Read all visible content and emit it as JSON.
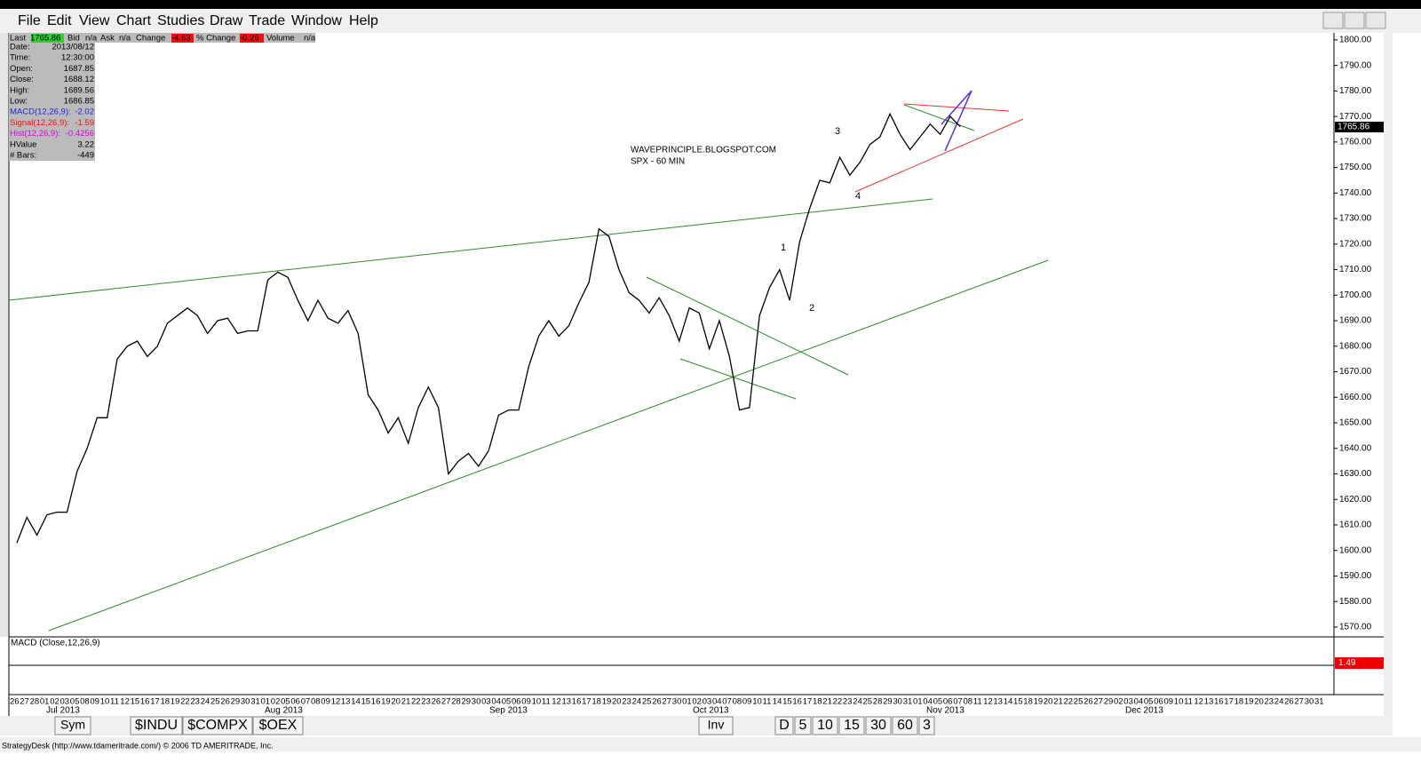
{
  "menu": [
    "File",
    "Edit",
    "View",
    "Chart",
    "Studies",
    "Draw",
    "Trade",
    "Window",
    "Help"
  ],
  "quote_bar": [
    {
      "label": "Last",
      "value": 1765.86
    },
    {
      "label": "Bid",
      "value": "n/a"
    },
    {
      "label": "Ask",
      "value": "n/a"
    },
    {
      "label": "Change",
      "value": -4.63
    },
    {
      "label": "% Change",
      "value": -0.26
    },
    {
      "label": "Volume",
      "value": "n/a"
    }
  ],
  "info_panel": [
    {
      "label": "Date:",
      "value": "2013/08/12"
    },
    {
      "label": "Time:",
      "value": "12:30:00"
    },
    {
      "label": "Open:",
      "value": 1687.85
    },
    {
      "label": "Close:",
      "value": 1688.12
    },
    {
      "label": "High:",
      "value": 1689.56
    },
    {
      "label": "Low:",
      "value": 1686.85
    },
    {
      "label": "MACD(12,26,9):",
      "value": -2.02
    },
    {
      "label": "Signal(12,26,9):",
      "value": -1.59
    },
    {
      "label": "Hist(12,26,9):",
      "value": -0.4256
    },
    {
      "label": "HValue",
      "value": 3.22
    },
    {
      "label": "# Bars:",
      "value": -449
    }
  ],
  "chart_data": {
    "type": "line",
    "annotations": [
      "WAVEPRINCIPLE.BLOGSPOT.COM",
      "SPX - 60 MIN",
      "3",
      "1",
      "2",
      "4"
    ],
    "categories": [
      "26",
      "27",
      "28",
      "01",
      "02",
      "03",
      "05",
      "08",
      "09",
      "10",
      "11",
      "12",
      "15",
      "16",
      "17",
      "18",
      "19",
      "22",
      "23",
      "24",
      "25",
      "26",
      "29",
      "30",
      "31",
      "01",
      "02",
      "05",
      "06",
      "07",
      "08",
      "09",
      "12",
      "13",
      "14",
      "15",
      "16",
      "19",
      "20",
      "21",
      "22",
      "23",
      "26",
      "27",
      "28",
      "29",
      "30",
      "03",
      "04",
      "05",
      "06",
      "09",
      "10",
      "11",
      "12",
      "13",
      "16",
      "17",
      "18",
      "19",
      "20",
      "23",
      "24",
      "25",
      "26",
      "27",
      "30",
      "01",
      "02",
      "03",
      "04",
      "07",
      "08",
      "09",
      "10",
      "11",
      "14",
      "15",
      "16",
      "17",
      "18",
      "21",
      "22",
      "23",
      "24",
      "25",
      "28",
      "29",
      "30",
      "31",
      "01",
      "04",
      "05",
      "06",
      "07",
      "08",
      "11",
      "12",
      "13",
      "14",
      "15",
      "18",
      "19",
      "20",
      "21",
      "22",
      "25",
      "26",
      "27",
      "29",
      "02",
      "03",
      "04",
      "05",
      "06",
      "09",
      "10",
      "11",
      "12",
      "13",
      "16",
      "17",
      "18",
      "19",
      "20",
      "23",
      "24",
      "26",
      "27",
      "30",
      "31"
    ],
    "months": [
      "Jul 2013",
      "Aug 2013",
      "Sep 2013",
      "Oct 2013",
      "Nov 2013",
      "Dec 2013"
    ],
    "values": [
      1603,
      1613,
      1606,
      1614,
      1615,
      1615,
      1631,
      1640,
      1652,
      1652,
      1675,
      1680,
      1682,
      1676,
      1680,
      1689,
      1692,
      1695,
      1692,
      1685,
      1690,
      1691,
      1685,
      1686,
      1686,
      1706,
      1709,
      1707,
      1698,
      1690,
      1698,
      1691,
      1689,
      1694,
      1685,
      1661,
      1655,
      1646,
      1652,
      1642,
      1656,
      1664,
      1656,
      1630,
      1635,
      1638,
      1633,
      1639,
      1653,
      1655,
      1655,
      1672,
      1684,
      1690,
      1684,
      1688,
      1697,
      1705,
      1726,
      1723,
      1710,
      1701,
      1698,
      1693,
      1699,
      1692,
      1682,
      1695,
      1693,
      1679,
      1690,
      1676,
      1655,
      1656,
      1692,
      1703,
      1710,
      1698,
      1721,
      1734,
      1745,
      1744,
      1754,
      1747,
      1752,
      1759,
      1762,
      1771,
      1763,
      1757,
      1762,
      1767,
      1763,
      1770,
      1766,
      null,
      null,
      null,
      null,
      null,
      null,
      null,
      null,
      null,
      null,
      null,
      null,
      null,
      null,
      null,
      null,
      null,
      null,
      null,
      null,
      null,
      null,
      null,
      null,
      null,
      null,
      null,
      null,
      null,
      null,
      null,
      null,
      null,
      null,
      null,
      null
    ],
    "color": "#000000",
    "ylim": [
      1566.5,
      1802.4
    ],
    "yticks": [
      {
        "value": 1570,
        "label": "1570.00"
      },
      {
        "value": 1580,
        "label": "1580.00"
      },
      {
        "value": 1590,
        "label": "1590.00"
      },
      {
        "value": 1600,
        "label": "1600.00"
      },
      {
        "value": 1610,
        "label": "1610.00"
      },
      {
        "value": 1620,
        "label": "1620.00"
      },
      {
        "value": 1630,
        "label": "1630.00"
      },
      {
        "value": 1640,
        "label": "1640.00"
      },
      {
        "value": 1650,
        "label": "1650.00"
      },
      {
        "value": 1660,
        "label": "1660.00"
      },
      {
        "value": 1670,
        "label": "1670.00"
      },
      {
        "value": 1680,
        "label": "1680.00"
      },
      {
        "value": 1690,
        "label": "1690.00"
      },
      {
        "value": 1700,
        "label": "1700.00"
      },
      {
        "value": 1710,
        "label": "1710.00"
      },
      {
        "value": 1720,
        "label": "1720.00"
      },
      {
        "value": 1730,
        "label": "1730.00"
      },
      {
        "value": 1740,
        "label": "1740.00"
      },
      {
        "value": 1750,
        "label": "1750.00"
      },
      {
        "value": 1760,
        "label": "1760.00"
      },
      {
        "value": 1770,
        "label": "1770.00"
      },
      {
        "value": 1780,
        "label": "1780.00"
      },
      {
        "value": 1790,
        "label": "1790.00"
      },
      {
        "value": 1800,
        "label": "1800.00"
      }
    ],
    "macd_label": "MACD (Close,12,26,9)",
    "macd_value": 1.49
  },
  "symbol_tabs": [
    "Sym",
    "$INDU",
    "$COMPX",
    "$OEX"
  ],
  "inv_button": "Inv",
  "interval_tabs": [
    "D",
    "5",
    "10",
    "15",
    "30",
    "60",
    "3"
  ],
  "status": "StrategyDesk (http://www.tdameritrade.com/) © 2006 TD AMERITRADE, Inc."
}
